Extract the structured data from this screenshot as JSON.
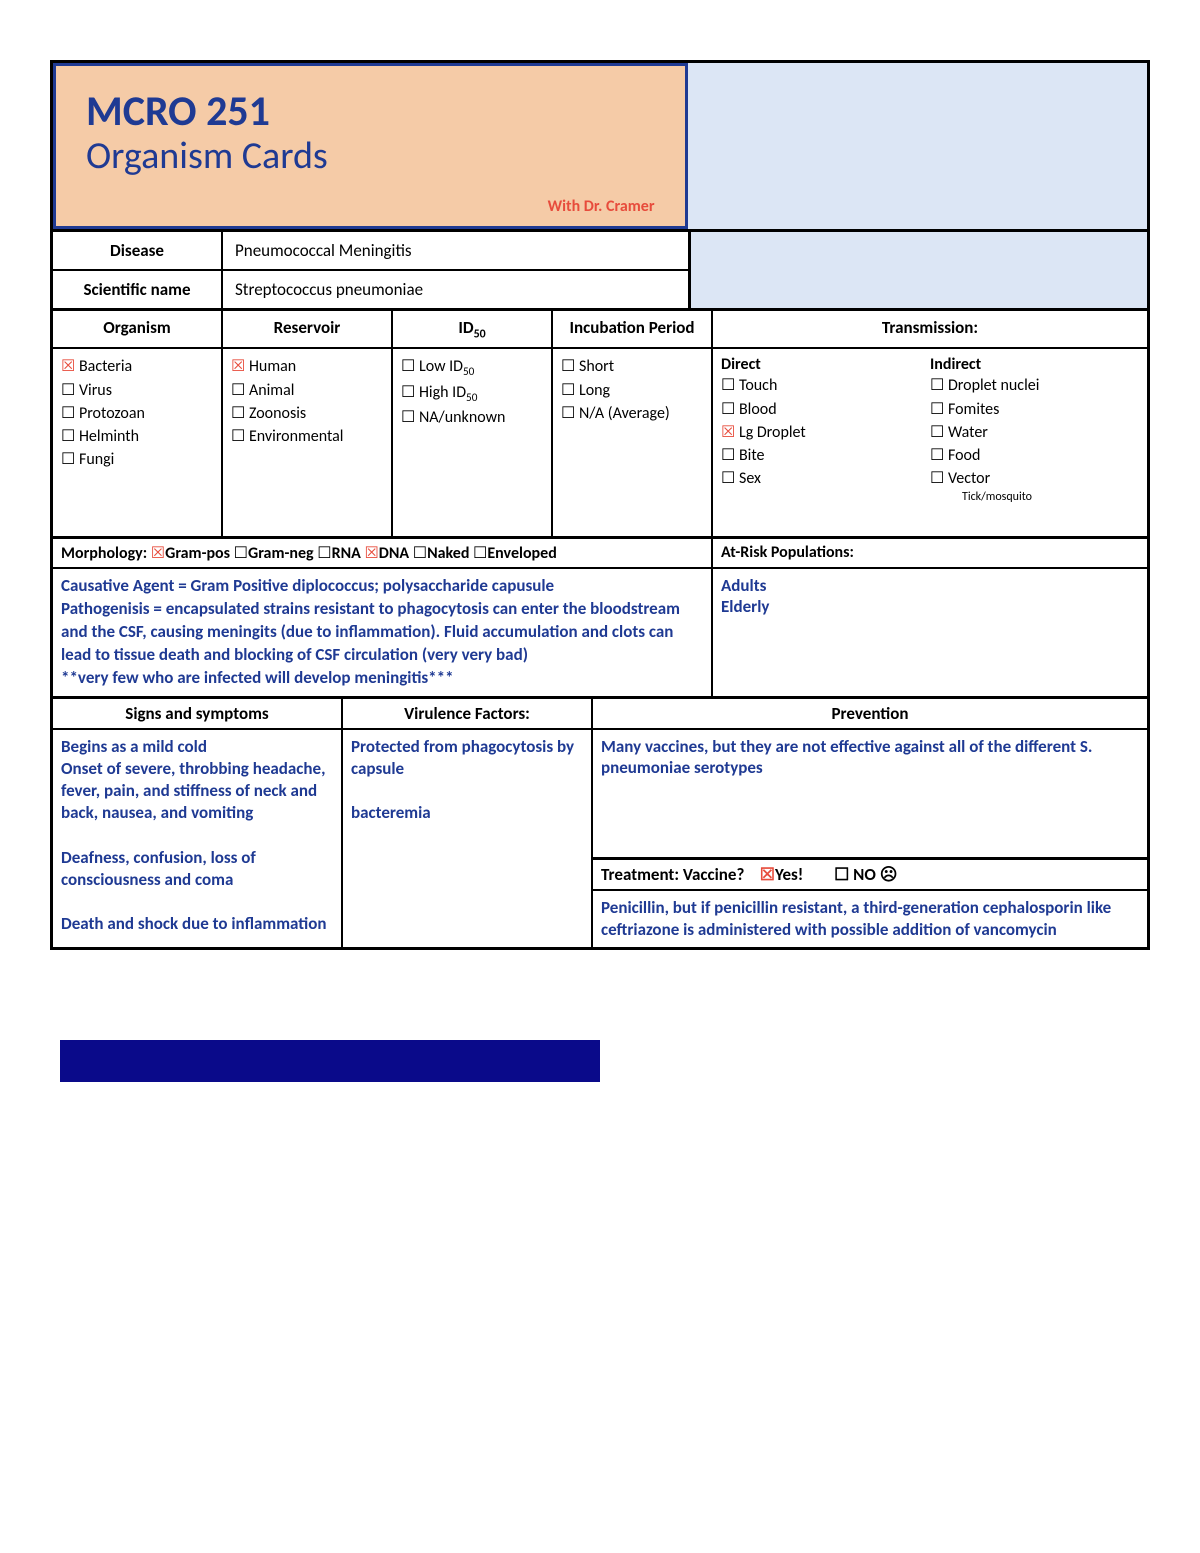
{
  "title": {
    "main": "MCRO 251",
    "sub": "Organism Cards",
    "prof": "With Dr. Cramer"
  },
  "disease": {
    "label": "Disease",
    "value": "Pneumococcal Meningitis"
  },
  "sciname": {
    "label": "Scientific name",
    "value": "Streptococcus pneumoniae"
  },
  "headers": {
    "organism": "Organism",
    "reservoir": "Reservoir",
    "id50": "ID",
    "id50_sub": "50",
    "incubation": "Incubation Period",
    "transmission": "Transmission:"
  },
  "organism": [
    {
      "label": "Bacteria",
      "checked": true
    },
    {
      "label": "Virus",
      "checked": false
    },
    {
      "label": "Protozoan",
      "checked": false
    },
    {
      "label": "Helminth",
      "checked": false
    },
    {
      "label": "Fungi",
      "checked": false
    }
  ],
  "reservoir": [
    {
      "label": "Human",
      "checked": true
    },
    {
      "label": "Animal",
      "checked": false
    },
    {
      "label": "Zoonosis",
      "checked": false
    },
    {
      "label": "Environmental",
      "checked": false
    }
  ],
  "id50": [
    {
      "label": "Low ID",
      "sub": "50",
      "checked": false
    },
    {
      "label": "High ID",
      "sub": "50",
      "checked": false
    },
    {
      "label": "NA/unknown",
      "checked": false
    }
  ],
  "incubation": [
    {
      "label": "Short",
      "checked": false
    },
    {
      "label": "Long",
      "checked": false
    },
    {
      "label": "N/A (Average)",
      "checked": false
    }
  ],
  "trans_direct": {
    "title": "Direct",
    "items": [
      {
        "label": "Touch",
        "checked": false
      },
      {
        "label": "Blood",
        "checked": false
      },
      {
        "label": "Lg Droplet",
        "checked": true
      },
      {
        "label": "Bite",
        "checked": false
      },
      {
        "label": "Sex",
        "checked": false
      }
    ]
  },
  "trans_indirect": {
    "title": "Indirect",
    "items": [
      {
        "label": "Droplet nuclei",
        "checked": false
      },
      {
        "label": "Fomites",
        "checked": false
      },
      {
        "label": "Water",
        "checked": false
      },
      {
        "label": "Food",
        "checked": false
      },
      {
        "label": "Vector",
        "checked": false
      }
    ],
    "note": "Tick/mosquito"
  },
  "morphology": {
    "label": "Morphology:",
    "items": [
      {
        "label": "Gram-pos",
        "checked": true
      },
      {
        "label": "Gram-neg",
        "checked": false
      },
      {
        "label": "RNA",
        "checked": false
      },
      {
        "label": "DNA",
        "checked": true
      },
      {
        "label": "Naked",
        "checked": false
      },
      {
        "label": "Enveloped",
        "checked": false
      }
    ]
  },
  "atrisk": {
    "label": "At-Risk Populations:",
    "body": "Adults\nElderly"
  },
  "pathogenesis": "Causative Agent = Gram Positive diplococcus; polysaccharide capusule\nPathogenisis = encapsulated strains resistant to phagocytosis can enter the bloodstream and the CSF, causing meningits (due to inflammation). Fluid accumulation and clots can lead to tissue death and blocking of CSF circulation (very very bad)\n**very few who are infected will develop meningitis***",
  "ssp": {
    "ss_label": "Signs and symptoms",
    "vf_label": "Virulence Factors:",
    "pv_label": "Prevention",
    "ss_body": "Begins as a mild cold\nOnset of severe, throbbing headache, fever, pain, and stiffness of neck and back, nausea, and vomiting\n\nDeafness, confusion, loss of consciousness and coma\n\nDeath and shock due to inflammation",
    "vf_body": "Protected from phagocytosis by capsule\n\nbacteremia",
    "pv_body": "Many vaccines, but they are not effective against all of the different S. pneumoniae serotypes"
  },
  "treatment": {
    "label": "Treatment:  Vaccine?",
    "yes": "Yes!",
    "no": "NO ☹",
    "yes_checked": true,
    "no_checked": false,
    "body": "Penicillin, but if penicillin resistant, a third-generation cephalosporin like ceftriazone is administered with possible addition of vancomycin"
  },
  "colors": {
    "title_bg": "#f5cba7",
    "side_bg": "#dce6f5",
    "border_blue": "#1f3a93",
    "accent_red": "#e74c3c",
    "footer_bar": "#0a0a8a"
  }
}
